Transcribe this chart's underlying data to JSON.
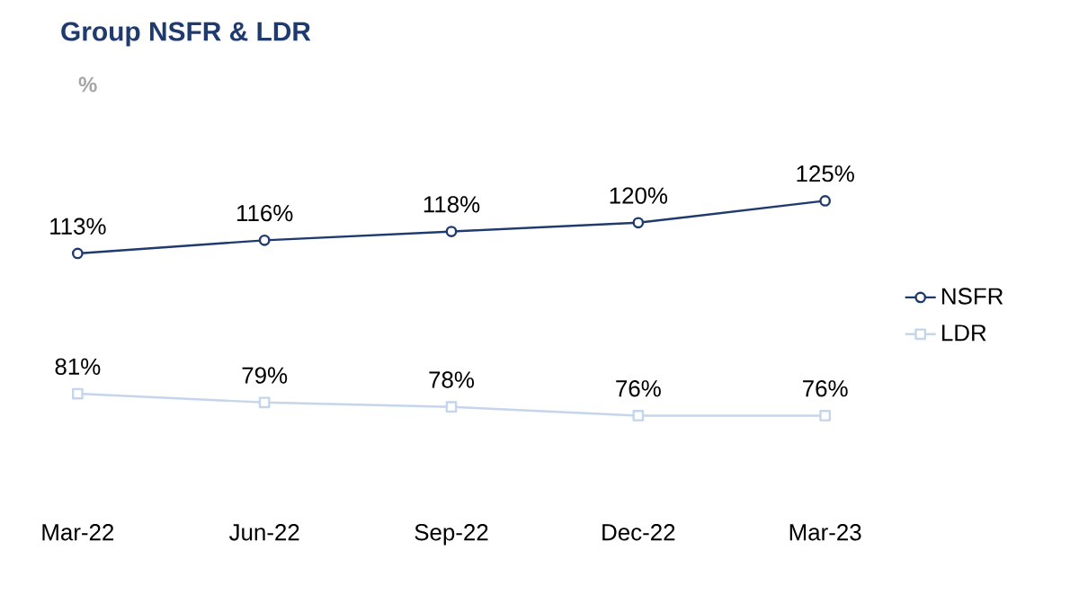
{
  "chart_data": {
    "type": "line",
    "title": "Group NSFR & LDR",
    "subtitle": "%",
    "categories": [
      "Mar-22",
      "Jun-22",
      "Sep-22",
      "Dec-22",
      "Mar-23"
    ],
    "series": [
      {
        "name": "NSFR",
        "color": "#1f3a6e",
        "marker": "circle",
        "values": [
          113,
          116,
          118,
          120,
          125
        ],
        "value_labels": [
          "113%",
          "116%",
          "118%",
          "120%",
          "125%"
        ]
      },
      {
        "name": "LDR",
        "color": "#c5d5ea",
        "marker": "square",
        "values": [
          81,
          79,
          78,
          76,
          76
        ],
        "value_labels": [
          "81%",
          "79%",
          "78%",
          "76%",
          "76%"
        ]
      }
    ],
    "legend": "right",
    "line_style": "solid"
  }
}
